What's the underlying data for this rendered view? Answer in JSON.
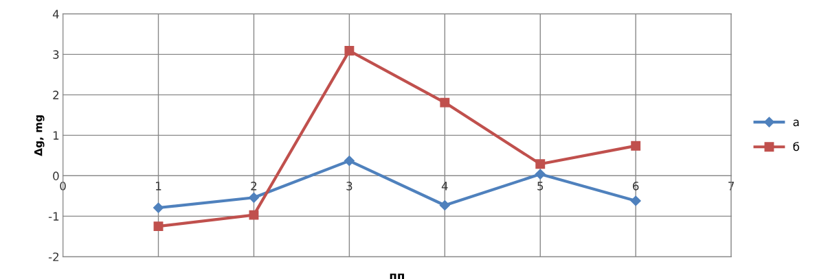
{
  "chart_data": {
    "type": "line",
    "xlabel": "пп",
    "ylabel": "Δg, mg",
    "x": [
      1,
      2,
      3,
      4,
      5,
      6
    ],
    "series": [
      {
        "name": "a",
        "color": "#4f81bd",
        "marker": "diamond",
        "values": [
          -0.79,
          -0.54,
          0.37,
          -0.73,
          0.04,
          -0.62
        ]
      },
      {
        "name": "б",
        "color": "#c0504d",
        "marker": "square",
        "values": [
          -1.25,
          -0.97,
          3.09,
          1.81,
          0.29,
          0.74
        ]
      }
    ],
    "xlim": [
      0,
      7
    ],
    "xticks": [
      0,
      1,
      2,
      3,
      4,
      5,
      6,
      7
    ],
    "ylim": [
      -2,
      4
    ],
    "yticks": [
      -2,
      -1,
      0,
      1,
      2,
      3,
      4
    ],
    "grid": true,
    "legend": "right",
    "line_style": "solid"
  }
}
